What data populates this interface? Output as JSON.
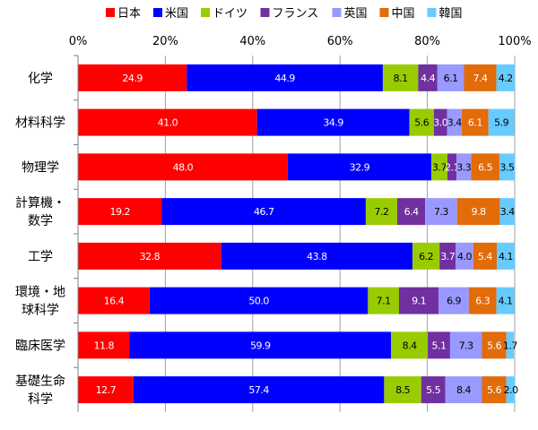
{
  "chart_data": {
    "type": "bar",
    "orientation": "horizontal",
    "stacked": "percent",
    "title": "",
    "xlabel": "",
    "ylabel": "",
    "xlim": [
      0,
      100
    ],
    "x_ticks": [
      "0%",
      "20%",
      "40%",
      "60%",
      "80%",
      "100%"
    ],
    "grid": true,
    "legend_position": "top",
    "categories": [
      [
        "化学"
      ],
      [
        "材料科学"
      ],
      [
        "物理学"
      ],
      [
        "計算機・",
        "数学"
      ],
      [
        "工学"
      ],
      [
        "環境・地",
        "球科学"
      ],
      [
        "臨床医学"
      ],
      [
        "基礎生命",
        "科学"
      ]
    ],
    "series": [
      {
        "name": "日本",
        "color": "#ff0000",
        "label_color": "#ffffff",
        "values": [
          24.9,
          41.0,
          48.0,
          19.2,
          32.8,
          16.4,
          11.8,
          12.7
        ]
      },
      {
        "name": "米国",
        "color": "#0000ff",
        "label_color": "#ffffff",
        "values": [
          44.9,
          34.9,
          32.9,
          46.7,
          43.8,
          50.0,
          59.9,
          57.4
        ]
      },
      {
        "name": "ドイツ",
        "color": "#99cc00",
        "label_color": "#000000",
        "values": [
          8.1,
          5.6,
          3.7,
          7.2,
          6.2,
          7.1,
          8.4,
          8.5
        ]
      },
      {
        "name": "フランス",
        "color": "#7030a0",
        "label_color": "#ffffff",
        "values": [
          4.4,
          3.0,
          2.1,
          6.4,
          3.7,
          9.1,
          5.1,
          5.5
        ]
      },
      {
        "name": "英国",
        "color": "#9999ff",
        "label_color": "#000000",
        "values": [
          6.1,
          3.4,
          3.3,
          7.3,
          4.0,
          6.9,
          7.3,
          8.4
        ]
      },
      {
        "name": "中国",
        "color": "#e26b0a",
        "label_color": "#ffffff",
        "values": [
          7.4,
          6.1,
          6.5,
          9.8,
          5.4,
          6.3,
          5.6,
          5.6
        ]
      },
      {
        "name": "韓国",
        "color": "#66ccff",
        "label_color": "#000000",
        "values": [
          4.2,
          5.9,
          3.5,
          3.4,
          4.1,
          4.1,
          1.7,
          2.0
        ]
      }
    ]
  }
}
